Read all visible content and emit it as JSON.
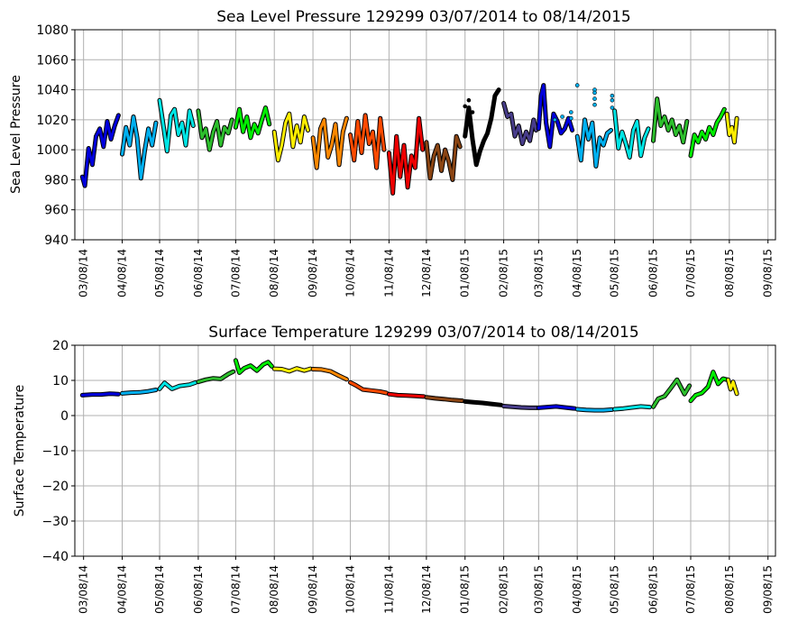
{
  "chart_data": [
    {
      "type": "line",
      "title": "Sea Level Pressure 129299  03/07/2014 to 08/14/2015",
      "xlabel": "",
      "ylabel": "Sea Level Pressure",
      "ylim": [
        940,
        1080
      ],
      "yticks": [
        "940",
        "960",
        "980",
        "1000",
        "1020",
        "1040",
        "1060",
        "1080"
      ],
      "xlim": [
        "03/01/14",
        "09/14/15"
      ],
      "xticks": [
        "03/08/14",
        "04/08/14",
        "05/08/14",
        "06/08/14",
        "07/08/14",
        "08/08/14",
        "09/08/14",
        "10/08/14",
        "11/08/14",
        "12/08/14",
        "01/08/15",
        "02/08/15",
        "03/08/15",
        "04/08/15",
        "05/08/15",
        "06/08/15",
        "07/08/15",
        "08/08/15",
        "09/08/15"
      ],
      "grid": true,
      "series": [
        {
          "color": "#0000dd",
          "x": [
            "03/07/14",
            "03/09/14",
            "03/12/14",
            "03/15/14",
            "03/18/14",
            "03/21/14",
            "03/24/14",
            "03/27/14",
            "03/30/14",
            "04/02/14",
            "04/05/14"
          ],
          "y": [
            982,
            976,
            1001,
            990,
            1009,
            1014,
            1002,
            1019,
            1007,
            1016,
            1023
          ]
        },
        {
          "color": "#00b0f0",
          "x": [
            "04/08/14",
            "04/11/14",
            "04/14/14",
            "04/17/14",
            "04/20/14",
            "04/23/14",
            "04/26/14",
            "04/29/14",
            "05/02/14",
            "05/05/14"
          ],
          "y": [
            997,
            1015,
            1003,
            1022,
            1008,
            981,
            999,
            1014,
            1003,
            1018
          ]
        },
        {
          "color": "#00e5e5",
          "x": [
            "05/08/14",
            "05/11/14",
            "05/14/14",
            "05/17/14",
            "05/20/14",
            "05/23/14",
            "05/26/14",
            "05/29/14",
            "06/01/14",
            "06/04/14"
          ],
          "y": [
            1033,
            1016,
            999,
            1023,
            1027,
            1010,
            1018,
            1003,
            1026,
            1016
          ]
        },
        {
          "color": "#2dbf2d",
          "x": [
            "06/08/14",
            "06/11/14",
            "06/14/14",
            "06/17/14",
            "06/20/14",
            "06/23/14",
            "06/26/14",
            "06/29/14",
            "07/02/14",
            "07/05/14"
          ],
          "y": [
            1026,
            1008,
            1014,
            1000,
            1012,
            1019,
            1003,
            1015,
            1011,
            1020
          ]
        },
        {
          "color": "#00ee00",
          "x": [
            "07/08/14",
            "07/11/14",
            "07/14/14",
            "07/17/14",
            "07/20/14",
            "07/23/14",
            "07/26/14",
            "07/29/14",
            "08/01/14",
            "08/04/14"
          ],
          "y": [
            1015,
            1027,
            1012,
            1022,
            1008,
            1017,
            1011,
            1020,
            1028,
            1017
          ]
        },
        {
          "color": "#ffee00",
          "x": [
            "08/08/14",
            "08/11/14",
            "08/14/14",
            "08/17/14",
            "08/20/14",
            "08/23/14",
            "08/26/14",
            "08/29/14",
            "09/01/14",
            "09/04/14"
          ],
          "y": [
            1012,
            993,
            1003,
            1018,
            1024,
            1002,
            1016,
            1005,
            1022,
            1013
          ]
        },
        {
          "color": "#ff8800",
          "x": [
            "09/08/14",
            "09/11/14",
            "09/14/14",
            "09/17/14",
            "09/20/14",
            "09/23/14",
            "09/26/14",
            "09/29/14",
            "10/02/14",
            "10/05/14"
          ],
          "y": [
            1008,
            988,
            1014,
            1020,
            995,
            1003,
            1017,
            990,
            1012,
            1021
          ]
        },
        {
          "color": "#ff4a00",
          "x": [
            "10/08/14",
            "10/11/14",
            "10/14/14",
            "10/17/14",
            "10/20/14",
            "10/23/14",
            "10/26/14",
            "10/29/14",
            "11/01/14",
            "11/04/14"
          ],
          "y": [
            1010,
            993,
            1019,
            998,
            1023,
            1004,
            1012,
            988,
            1021,
            1000
          ]
        },
        {
          "color": "#ee0000",
          "x": [
            "11/08/14",
            "11/11/14",
            "11/14/14",
            "11/17/14",
            "11/20/14",
            "11/23/14",
            "11/26/14",
            "11/29/14",
            "12/02/14",
            "12/05/14"
          ],
          "y": [
            998,
            971,
            1009,
            982,
            1003,
            975,
            996,
            988,
            1021,
            1000
          ]
        },
        {
          "color": "#8b4513",
          "x": [
            "12/08/14",
            "12/11/14",
            "12/14/14",
            "12/17/14",
            "12/20/14",
            "12/23/14",
            "12/26/14",
            "12/29/14",
            "01/01/15",
            "01/04/15"
          ],
          "y": [
            1005,
            981,
            996,
            1003,
            986,
            1000,
            992,
            980,
            1009,
            1002
          ]
        },
        {
          "color": "#000000",
          "x": [
            "01/08/15",
            "01/11/15",
            "01/14/15",
            "01/17/15",
            "01/20/15",
            "01/23/15",
            "01/26/15",
            "01/29/15",
            "02/01/15",
            "02/04/15"
          ],
          "y": [
            1009,
            1028,
            1007,
            990,
            999,
            1006,
            1011,
            1021,
            1036,
            1040
          ]
        },
        {
          "color": "#483d8b",
          "x": [
            "02/08/15",
            "02/11/15",
            "02/14/15",
            "02/17/15",
            "02/20/15",
            "02/23/15",
            "02/26/15",
            "03/01/15",
            "03/04/15",
            "03/06/15"
          ],
          "y": [
            1031,
            1022,
            1024,
            1009,
            1016,
            1004,
            1012,
            1006,
            1020,
            1013
          ]
        },
        {
          "color": "#0000dd",
          "x": [
            "03/08/15",
            "03/10/15",
            "03/12/15",
            "03/14/15",
            "03/17/15",
            "03/20/15",
            "03/23/15",
            "03/26/15",
            "03/29/15",
            "04/01/15",
            "04/04/15"
          ],
          "y": [
            1014,
            1036,
            1043,
            1018,
            1002,
            1024,
            1019,
            1011,
            1014,
            1021,
            1013
          ]
        },
        {
          "color": "#00b0f0",
          "x": [
            "04/08/15",
            "04/11/15",
            "04/14/15",
            "04/17/15",
            "04/20/15",
            "04/23/15",
            "04/26/15",
            "04/29/15",
            "05/02/15",
            "05/05/15"
          ],
          "y": [
            1009,
            993,
            1020,
            1007,
            1018,
            989,
            1008,
            1003,
            1011,
            1013
          ]
        },
        {
          "color": "#00e5e5",
          "x": [
            "05/08/15",
            "05/11/15",
            "05/14/15",
            "05/17/15",
            "05/20/15",
            "05/23/15",
            "05/26/15",
            "05/29/15",
            "06/01/15",
            "06/04/15"
          ],
          "y": [
            1026,
            1001,
            1012,
            1004,
            995,
            1013,
            1019,
            996,
            1008,
            1014
          ]
        },
        {
          "color": "#2dbf2d",
          "x": [
            "06/08/15",
            "06/11/15",
            "06/14/15",
            "06/17/15",
            "06/20/15",
            "06/23/15",
            "06/26/15",
            "06/29/15",
            "07/02/15",
            "07/05/15"
          ],
          "y": [
            1006,
            1034,
            1016,
            1022,
            1013,
            1020,
            1010,
            1016,
            1005,
            1019
          ]
        },
        {
          "color": "#00ee00",
          "x": [
            "07/08/15",
            "07/11/15",
            "07/14/15",
            "07/17/15",
            "07/20/15",
            "07/23/15",
            "07/26/15",
            "07/29/15",
            "08/01/15",
            "08/04/15"
          ],
          "y": [
            996,
            1010,
            1005,
            1012,
            1007,
            1015,
            1010,
            1018,
            1022,
            1027
          ]
        },
        {
          "color": "#ffee00",
          "x": [
            "08/06/15",
            "08/08/15",
            "08/10/15",
            "08/12/15",
            "08/14/15"
          ],
          "y": [
            1024,
            1010,
            1015,
            1005,
            1021
          ]
        }
      ],
      "outliers": [
        {
          "color": "#00b0f0",
          "x": [
            "03/21/15",
            "03/27/15",
            "04/03/15",
            "04/03/15",
            "04/08/15",
            "04/22/15",
            "04/22/15",
            "04/22/15",
            "04/22/15",
            "05/06/15",
            "05/06/15",
            "05/06/15"
          ],
          "y": [
            1020,
            1022,
            1025,
            1021,
            1043,
            1040,
            1038,
            1034,
            1030,
            1036,
            1033,
            1028
          ]
        },
        {
          "color": "#000000",
          "x": [
            "01/08/15",
            "01/11/15",
            "01/14/15"
          ],
          "y": [
            1029,
            1033,
            1025
          ]
        }
      ]
    },
    {
      "type": "line",
      "title": "Surface Temperature 129299  03/07/2014 to 08/14/2015",
      "xlabel": "",
      "ylabel": "Surface Temperature",
      "ylim": [
        -40,
        20
      ],
      "yticks": [
        "−40",
        "−30",
        "−20",
        "−10",
        "0",
        "10",
        "20"
      ],
      "xlim": [
        "03/01/14",
        "09/14/15"
      ],
      "xticks": [
        "03/08/14",
        "04/08/14",
        "05/08/14",
        "06/08/14",
        "07/08/14",
        "08/08/14",
        "09/08/14",
        "10/08/14",
        "11/08/14",
        "12/08/14",
        "01/08/15",
        "02/08/15",
        "03/08/15",
        "04/08/15",
        "05/08/15",
        "06/08/15",
        "07/08/15",
        "08/08/15",
        "09/08/15"
      ],
      "grid": true,
      "series": [
        {
          "color": "#0000dd",
          "x": [
            "03/07/14",
            "03/15/14",
            "03/22/14",
            "03/29/14",
            "04/05/14"
          ],
          "y": [
            5.8,
            6.0,
            6.0,
            6.2,
            6.1
          ]
        },
        {
          "color": "#00b0f0",
          "x": [
            "04/08/14",
            "04/15/14",
            "04/22/14",
            "04/29/14",
            "05/05/14"
          ],
          "y": [
            6.3,
            6.5,
            6.6,
            6.9,
            7.3
          ]
        },
        {
          "color": "#00e5e5",
          "x": [
            "05/08/14",
            "05/12/14",
            "05/18/14",
            "05/24/14",
            "06/01/14",
            "06/06/14"
          ],
          "y": [
            7.6,
            9.3,
            7.6,
            8.4,
            8.8,
            9.4
          ]
        },
        {
          "color": "#2dbf2d",
          "x": [
            "06/08/14",
            "06/14/14",
            "06/20/14",
            "06/26/14",
            "07/02/14",
            "07/06/14"
          ],
          "y": [
            9.6,
            10.2,
            10.6,
            10.4,
            11.8,
            12.5
          ]
        },
        {
          "color": "#00ee00",
          "x": [
            "07/08/14",
            "07/11/14",
            "07/15/14",
            "07/20/14",
            "07/25/14",
            "07/30/14",
            "08/03/14",
            "08/06/14"
          ],
          "y": [
            15.7,
            12.2,
            13.5,
            14.2,
            12.8,
            14.5,
            15.2,
            14.0
          ]
        },
        {
          "color": "#ffee00",
          "x": [
            "08/08/14",
            "08/14/14",
            "08/20/14",
            "08/26/14",
            "09/01/14",
            "09/06/14"
          ],
          "y": [
            13.3,
            13.2,
            12.6,
            13.4,
            12.8,
            13.3
          ]
        },
        {
          "color": "#ff8800",
          "x": [
            "09/08/14",
            "09/15/14",
            "09/22/14",
            "09/29/14",
            "10/05/14"
          ],
          "y": [
            13.2,
            13.1,
            12.6,
            11.3,
            10.3
          ]
        },
        {
          "color": "#ff4a00",
          "x": [
            "10/08/14",
            "10/12/14",
            "10/18/14",
            "10/25/14",
            "11/01/14",
            "11/06/14"
          ],
          "y": [
            9.4,
            8.7,
            7.4,
            7.1,
            6.8,
            6.4
          ]
        },
        {
          "color": "#ee0000",
          "x": [
            "11/08/14",
            "11/15/14",
            "11/22/14",
            "11/29/14",
            "12/06/14"
          ],
          "y": [
            6.1,
            5.8,
            5.7,
            5.6,
            5.4
          ]
        },
        {
          "color": "#8b4513",
          "x": [
            "12/08/14",
            "12/15/14",
            "12/22/14",
            "12/29/14",
            "01/06/15"
          ],
          "y": [
            5.2,
            4.9,
            4.7,
            4.4,
            4.2
          ]
        },
        {
          "color": "#000000",
          "x": [
            "01/08/15",
            "01/15/15",
            "01/22/15",
            "01/29/15",
            "02/06/15"
          ],
          "y": [
            4.0,
            3.8,
            3.6,
            3.3,
            3.0
          ]
        },
        {
          "color": "#483d8b",
          "x": [
            "02/08/15",
            "02/15/15",
            "02/22/15",
            "03/01/15",
            "03/07/15"
          ],
          "y": [
            2.7,
            2.5,
            2.3,
            2.2,
            2.2
          ]
        },
        {
          "color": "#0000dd",
          "x": [
            "03/08/15",
            "03/15/15",
            "03/22/15",
            "03/29/15",
            "04/06/15"
          ],
          "y": [
            2.2,
            2.4,
            2.6,
            2.3,
            2.0
          ]
        },
        {
          "color": "#00b0f0",
          "x": [
            "04/08/15",
            "04/15/15",
            "04/22/15",
            "04/29/15",
            "05/06/15"
          ],
          "y": [
            1.8,
            1.6,
            1.5,
            1.5,
            1.7
          ]
        },
        {
          "color": "#00e5e5",
          "x": [
            "05/08/15",
            "05/15/15",
            "05/22/15",
            "05/29/15",
            "06/05/15"
          ],
          "y": [
            1.8,
            2.0,
            2.3,
            2.6,
            2.4
          ]
        },
        {
          "color": "#2dbf2d",
          "x": [
            "06/08/15",
            "06/12/15",
            "06/17/15",
            "06/22/15",
            "06/27/15",
            "07/03/15",
            "07/07/15"
          ],
          "y": [
            2.5,
            4.8,
            5.5,
            7.8,
            10.2,
            6.1,
            8.5
          ]
        },
        {
          "color": "#00ee00",
          "x": [
            "07/08/15",
            "07/12/15",
            "07/17/15",
            "07/22/15",
            "07/26/15",
            "07/30/15",
            "08/03/15",
            "08/06/15"
          ],
          "y": [
            4.2,
            5.8,
            6.4,
            8.2,
            12.4,
            9.0,
            10.5,
            10.2
          ]
        },
        {
          "color": "#ffee00",
          "x": [
            "08/07/15",
            "08/09/15",
            "08/11/15",
            "08/14/15"
          ],
          "y": [
            10.2,
            7.5,
            9.6,
            6.2
          ]
        }
      ]
    }
  ]
}
